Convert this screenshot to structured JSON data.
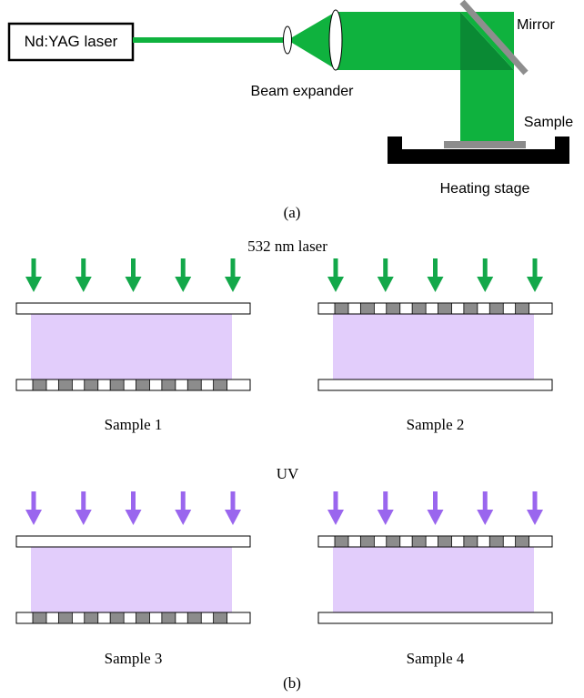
{
  "colors": {
    "laser_green": "#13a84a",
    "beam_green": "#0fb23e",
    "beam_green_dark": "#0a8a34",
    "uv_purple": "#9a66ee",
    "liquid_crystal": "#e2cdfb",
    "electrode_gray": "#8c8c8c",
    "mirror_gray": "#8e8e8e",
    "stage_black": "#000000"
  },
  "panel_a": {
    "laser_label": "Nd:YAG laser",
    "beam_expander_label": "Beam expander",
    "mirror_label": "Mirror",
    "sample_label": "Sample",
    "stage_label": "Heating stage",
    "caption": "(a)"
  },
  "panel_b": {
    "laser_label": "532 nm laser",
    "uv_label": "UV",
    "caption": "(b)",
    "samples": [
      {
        "label": "Sample 1",
        "source": "laser",
        "electrodes": "bottom"
      },
      {
        "label": "Sample 2",
        "source": "laser",
        "electrodes": "top"
      },
      {
        "label": "Sample 3",
        "source": "uv",
        "electrodes": "bottom"
      },
      {
        "label": "Sample 4",
        "source": "uv",
        "electrodes": "top"
      }
    ],
    "arrows_per_sample": 5,
    "electrodes_per_plate": 8
  }
}
